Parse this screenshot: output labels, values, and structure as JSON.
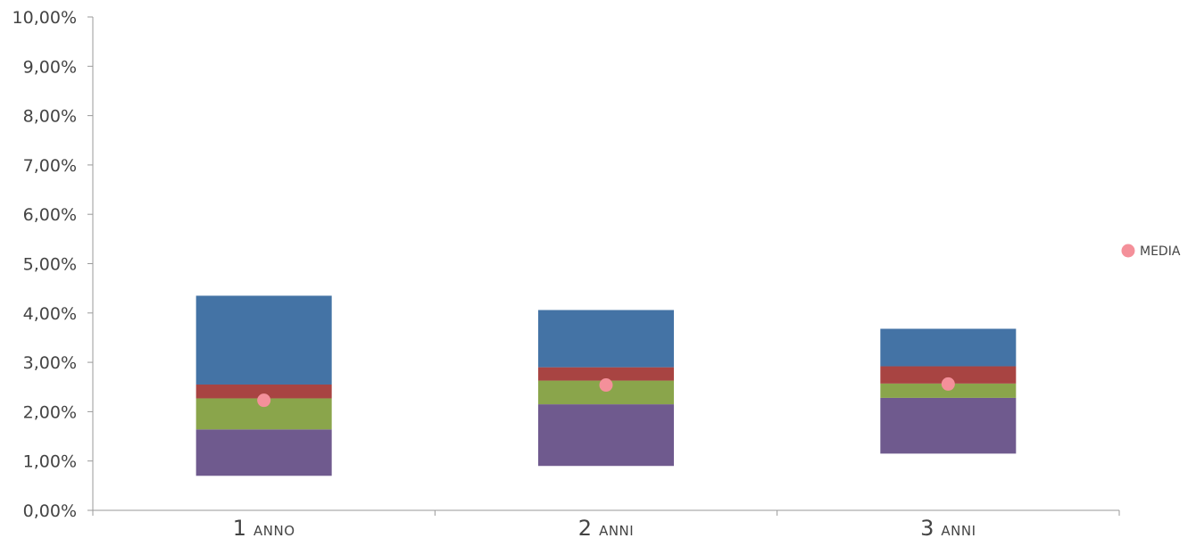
{
  "chart_data": {
    "type": "bar",
    "stacked": true,
    "categories": [
      {
        "num": "1",
        "word": "ANNO"
      },
      {
        "num": "2",
        "word": "ANNI"
      },
      {
        "num": "3",
        "word": "ANNI"
      }
    ],
    "segments": [
      {
        "color": "#6f5a8e",
        "ranges": [
          [
            0.7,
            1.64
          ],
          [
            0.9,
            2.15
          ],
          [
            1.15,
            2.28
          ]
        ]
      },
      {
        "color": "#8aa54b",
        "ranges": [
          [
            1.64,
            2.27
          ],
          [
            2.15,
            2.63
          ],
          [
            2.28,
            2.57
          ]
        ]
      },
      {
        "color": "#a84442",
        "ranges": [
          [
            2.27,
            2.55
          ],
          [
            2.63,
            2.9
          ],
          [
            2.57,
            2.92
          ]
        ]
      },
      {
        "color": "#4473a5",
        "ranges": [
          [
            2.55,
            4.35
          ],
          [
            2.9,
            4.06
          ],
          [
            2.92,
            3.68
          ]
        ]
      }
    ],
    "series": [
      {
        "name": "MEDIA",
        "type": "scatter",
        "color": "#f4909a",
        "values": [
          2.23,
          2.54,
          2.56
        ]
      }
    ],
    "ylim": [
      0,
      10
    ],
    "yticks": [
      "0,00%",
      "1,00%",
      "2,00%",
      "3,00%",
      "4,00%",
      "5,00%",
      "6,00%",
      "7,00%",
      "8,00%",
      "9,00%",
      "10,00%"
    ],
    "grid": false,
    "legend_position": "right"
  }
}
